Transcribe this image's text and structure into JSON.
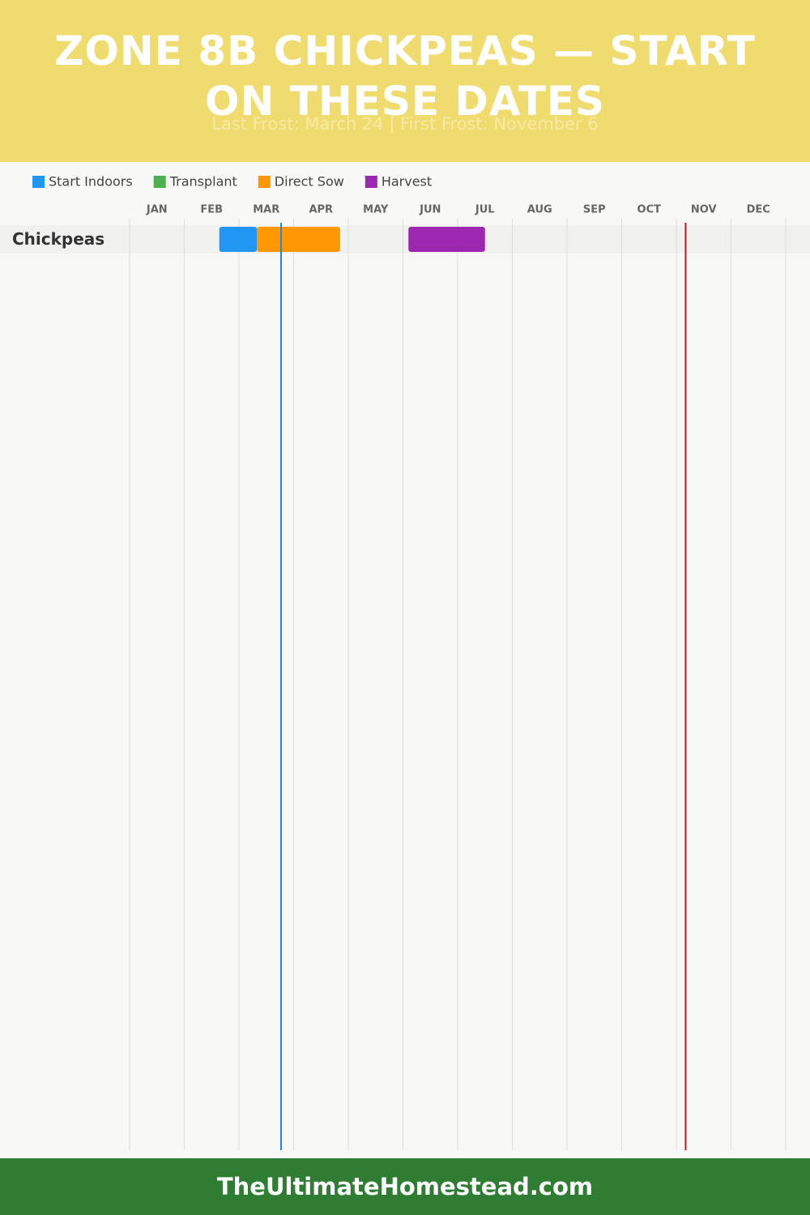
{
  "chart_data": {
    "type": "gantt",
    "title": "ZONE 8B CHICKPEAS — START ON THESE DATES",
    "subtitle": "Last Frost: March 24 | First Frost: November 6",
    "xlim": [
      0,
      12
    ],
    "months": [
      "JAN",
      "FEB",
      "MAR",
      "APR",
      "MAY",
      "JUN",
      "JUL",
      "AUG",
      "SEP",
      "OCT",
      "NOV",
      "DEC"
    ],
    "categories": [
      "Chickpeas"
    ],
    "series": [
      {
        "name": "Start Indoors",
        "color": "#2196f3",
        "values": [
          [
            1.64,
            2.33
          ]
        ]
      },
      {
        "name": "Transplant",
        "color": "#4caf50",
        "values": [
          null
        ]
      },
      {
        "name": "Direct Sow",
        "color": "#ff9800",
        "values": [
          [
            2.33,
            3.85
          ]
        ]
      },
      {
        "name": "Harvest",
        "color": "#9c27b0",
        "values": [
          [
            5.1,
            6.5
          ]
        ]
      }
    ],
    "frost_lines": [
      {
        "value": 2.77,
        "color": "#1e88e5"
      },
      {
        "value": 10.17,
        "color": "#b71c1c"
      }
    ],
    "grid": true
  },
  "footer": {
    "text": "TheUltimateHomestead.com"
  }
}
